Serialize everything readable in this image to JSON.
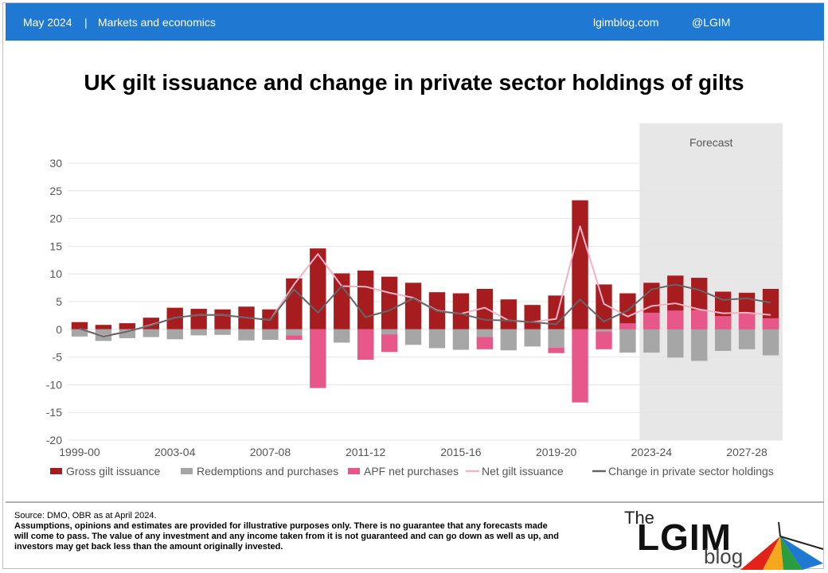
{
  "header": {
    "date": "May 2024",
    "separator": "|",
    "section": "Markets and economics",
    "site": "lgimblog.com",
    "handle": "@LGIM"
  },
  "chart_title": "UK gilt issuance and change in private sector holdings of gilts",
  "footer": {
    "source": "Source: DMO, OBR as at April 2024.",
    "disclaimer": "Assumptions, opinions and estimates are provided for illustrative purposes only. There is no guarantee that any forecasts made will come to pass. The value of any investment and any income taken from it is not guaranteed and can go down as well as up, and investors may get back less than the amount originally invested."
  },
  "logo": {
    "the": "The",
    "name": "LGIM",
    "blog": "blog"
  },
  "chart_data": {
    "type": "bar",
    "title": "UK gilt issuance and change in private sector holdings of gilts",
    "categories": [
      "1999-00",
      "2000-01",
      "2001-02",
      "2002-03",
      "2003-04",
      "2004-05",
      "2005-06",
      "2006-07",
      "2007-08",
      "2008-09",
      "2009-10",
      "2010-11",
      "2011-12",
      "2012-13",
      "2013-14",
      "2014-15",
      "2015-16",
      "2016-17",
      "2017-18",
      "2018-19",
      "2019-20",
      "2020-21",
      "2021-22",
      "2022-23",
      "2023-24",
      "2024-25",
      "2025-26",
      "2026-27",
      "2027-28",
      "2028-29"
    ],
    "x_tick_labels": [
      "1999-00",
      "2003-04",
      "2007-08",
      "2011-12",
      "2015-16",
      "2019-20",
      "2023-24",
      "2027-28"
    ],
    "ylim": [
      -20,
      30
    ],
    "y_ticks": [
      30,
      25,
      20,
      15,
      10,
      5,
      0,
      -5,
      -10,
      -15,
      -20
    ],
    "forecast_label": "Forecast",
    "forecast_start": "2023-24",
    "legend_position": "bottom",
    "colors": {
      "gross": "#a61c1f",
      "redemptions": "#a6a6a6",
      "apf": "#e8578a",
      "net": "#f2b3c4",
      "change": "#666666",
      "forecast_shade": "#e7e7e7",
      "grid": "#e4e4e4"
    },
    "series": [
      {
        "name": "Gross gilt issuance",
        "kind": "bar",
        "values": [
          1.3,
          0.8,
          1.1,
          2.1,
          3.9,
          3.7,
          3.6,
          4.1,
          3.6,
          9.2,
          14.6,
          10.1,
          10.6,
          9.5,
          8.4,
          6.7,
          6.5,
          7.3,
          5.4,
          4.4,
          6.1,
          23.3,
          8.1,
          6.5,
          8.4,
          9.7,
          9.3,
          6.8,
          6.6,
          7.3
        ]
      },
      {
        "name": "Redemptions and purchases",
        "kind": "bar",
        "values": [
          -1.3,
          -2.1,
          -1.6,
          -1.4,
          -1.8,
          -1.1,
          -1.0,
          -2.0,
          -1.9,
          -1.1,
          0,
          -2.4,
          0,
          -0.9,
          -2.8,
          -3.4,
          -3.7,
          -1.4,
          -3.8,
          -3.1,
          -3.3,
          0,
          -0.4,
          -4.2,
          -4.2,
          -5.1,
          -5.7,
          -3.9,
          -3.6,
          -4.7
        ]
      },
      {
        "name": "APF net purchases",
        "kind": "bar",
        "values": [
          0,
          0,
          0,
          0,
          0,
          0,
          0,
          0,
          0,
          -0.8,
          -10.6,
          0,
          -5.5,
          -3.2,
          0,
          0,
          0,
          -2.2,
          0,
          0,
          -1.0,
          -13.2,
          -3.2,
          1.1,
          3.0,
          3.4,
          3.5,
          2.4,
          3.0,
          2.0
        ]
      },
      {
        "name": "Net gilt issuance",
        "kind": "line",
        "values": [
          0.1,
          -1.2,
          -0.4,
          0.8,
          2.1,
          2.6,
          2.6,
          2.1,
          1.7,
          8.1,
          13.6,
          7.8,
          7.7,
          6.6,
          5.7,
          3.4,
          2.8,
          3.9,
          1.6,
          1.3,
          1.9,
          18.6,
          4.6,
          2.3,
          4.2,
          4.7,
          3.6,
          2.9,
          3.0,
          2.6
        ]
      },
      {
        "name": "Change in private sector holdings",
        "kind": "line",
        "values": [
          0.1,
          -1.3,
          -0.4,
          0.7,
          2.1,
          2.6,
          2.6,
          2.1,
          1.7,
          7.2,
          3.0,
          7.8,
          2.2,
          3.4,
          5.6,
          3.3,
          2.8,
          1.7,
          1.6,
          1.3,
          0.9,
          5.4,
          1.4,
          3.4,
          7.2,
          8.1,
          7.1,
          5.3,
          5.6,
          4.8
        ]
      }
    ]
  }
}
